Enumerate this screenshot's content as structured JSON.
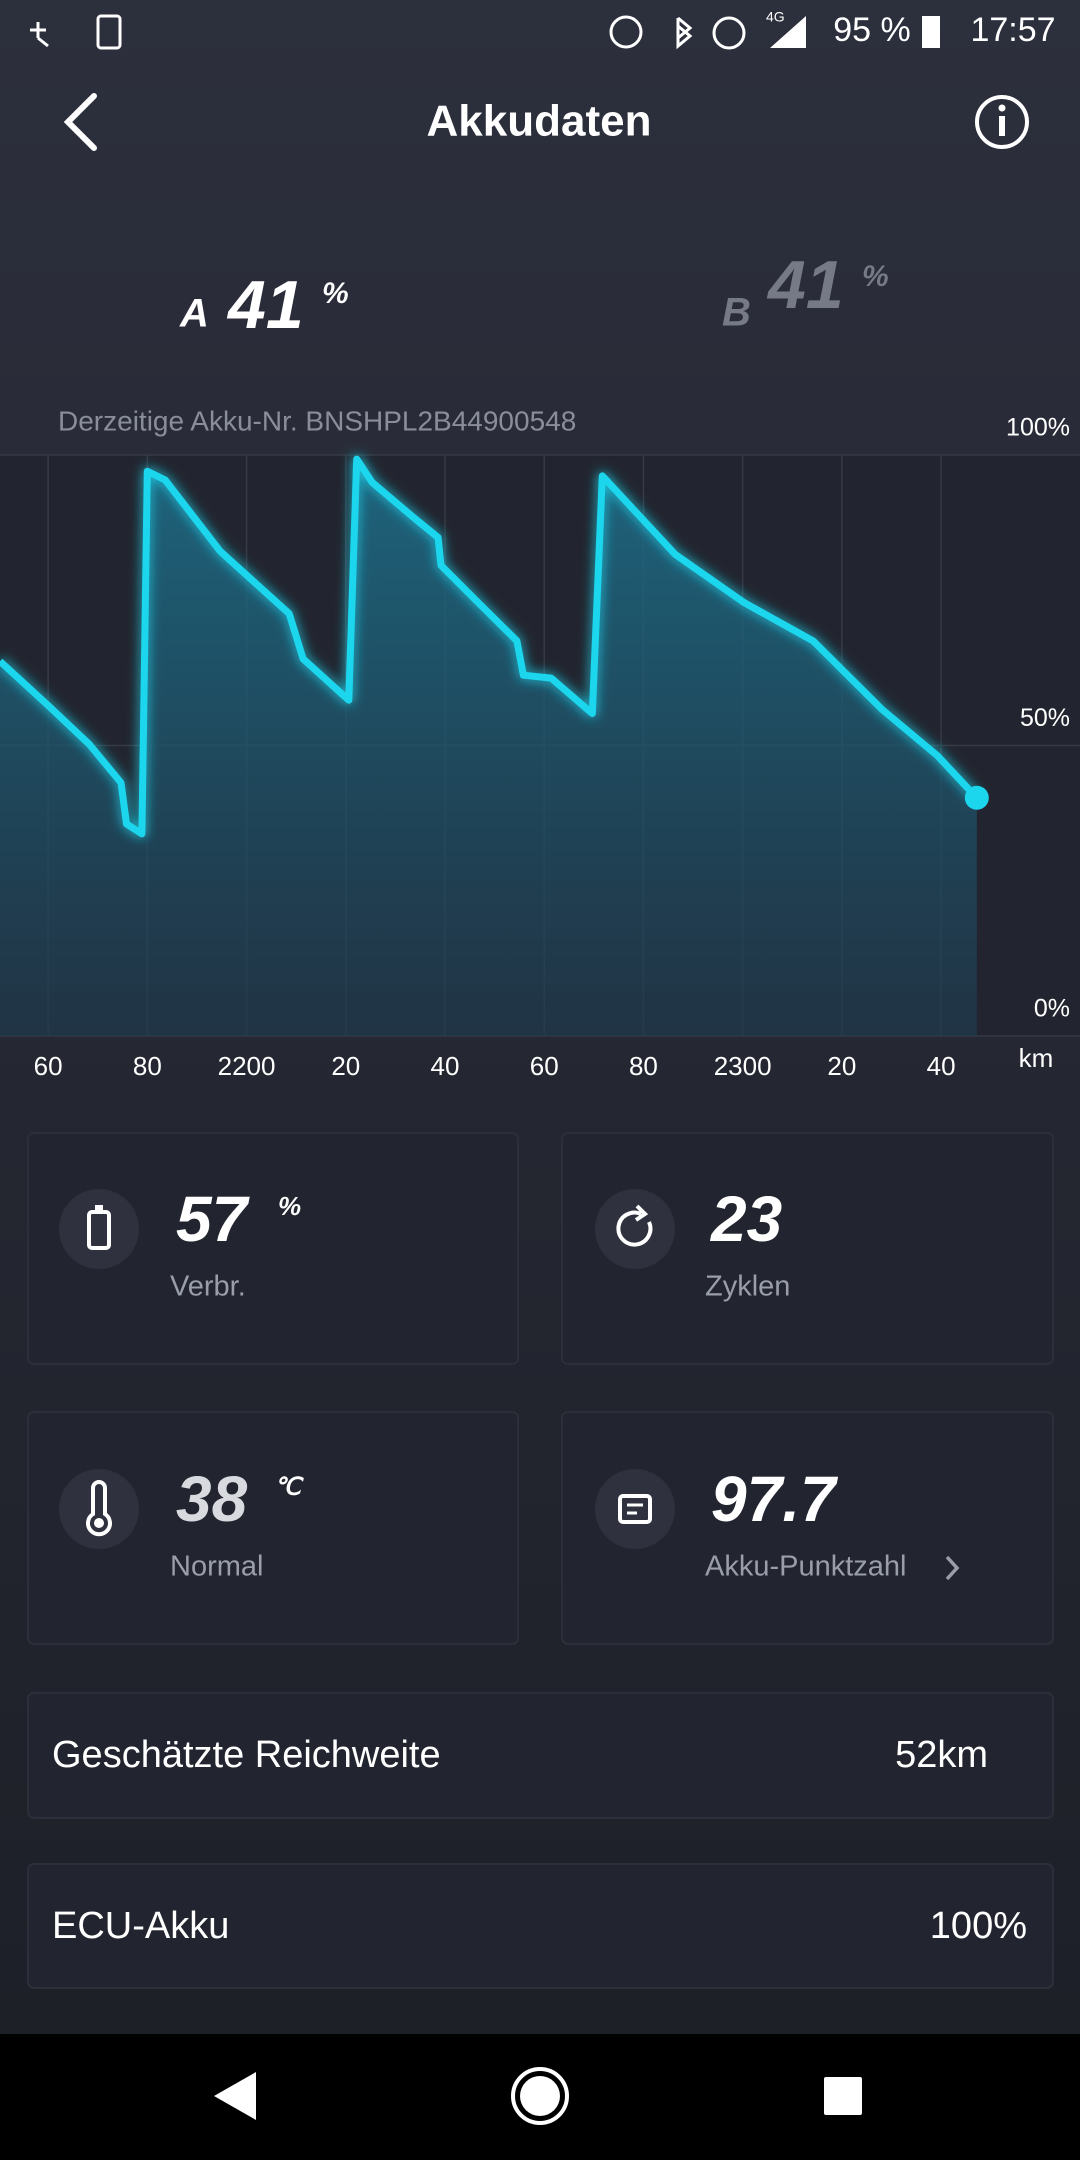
{
  "status_bar": {
    "network": "4G",
    "battery": "95 %",
    "time": "17:57"
  },
  "header": {
    "title": "Akkudaten"
  },
  "batteries": [
    {
      "label": "A",
      "value": "41",
      "unit": "%"
    },
    {
      "label": "B",
      "value": "41",
      "unit": "%"
    }
  ],
  "battery_number": "Derzeitige Akku-Nr. BNSHPL2B44900548",
  "chart_data": {
    "type": "line",
    "color": "#1cd6ee",
    "x": [
      2150.3,
      2160,
      2168.3,
      2174.7,
      2175.8,
      2178.9,
      2180,
      2183.6,
      2194.7,
      2208.6,
      2211.4,
      2220.6,
      2222.2,
      2225.3,
      2233.6,
      2238.6,
      2239.2,
      2246.1,
      2254.5,
      2255.8,
      2261.4,
      2269.7,
      2271.7,
      2286.4,
      2300.3,
      2314.2,
      2328.1,
      2339.2,
      2347.2
    ],
    "values": [
      64.5,
      56.9,
      50.2,
      43.6,
      36.5,
      34.8,
      97.2,
      95.7,
      83.4,
      72.7,
      64.9,
      57.8,
      99.3,
      95.3,
      89.3,
      85.8,
      81,
      75.1,
      68,
      62.1,
      61.6,
      55.5,
      96.4,
      82.9,
      74.6,
      68,
      56.2,
      48.3,
      41
    ],
    "xlim": [
      2150.3,
      2368
    ],
    "ylim": [
      0,
      100
    ],
    "x_unit": "km",
    "xticks": [
      {
        "value": 2160,
        "label": "60"
      },
      {
        "value": 2180,
        "label": "80"
      },
      2200,
      {
        "value": 2220,
        "label": "20"
      },
      {
        "value": 2240,
        "label": "40"
      },
      {
        "value": 2260,
        "label": "60"
      },
      {
        "value": 2280,
        "label": "80"
      },
      2300,
      {
        "value": 2320,
        "label": "20"
      },
      {
        "value": 2340,
        "label": "40"
      }
    ],
    "yticks": [
      {
        "value": 100,
        "label": "100%"
      },
      {
        "value": 50,
        "label": "50%"
      },
      {
        "value": 0,
        "label": "0%"
      }
    ],
    "grid": true
  },
  "stats": [
    {
      "value": "57",
      "unit": "%",
      "label": "Verbr."
    },
    {
      "value": "23",
      "label": "Zyklen"
    },
    {
      "value": "38",
      "unit": "℃",
      "label": "Normal"
    },
    {
      "value": "97.7",
      "label": "Akku-Punktzahl"
    }
  ],
  "rows": [
    {
      "label": "Geschätzte Reichweite",
      "value": "52km"
    },
    {
      "label": "ECU-Akku",
      "value": "100%"
    }
  ]
}
